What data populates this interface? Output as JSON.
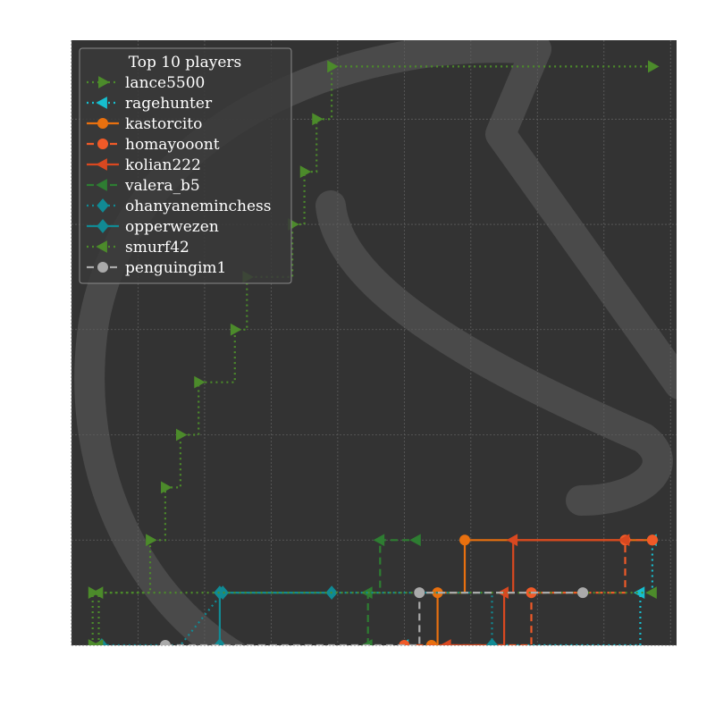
{
  "chart_data": {
    "type": "line",
    "style": "step",
    "legend": {
      "title": "Top 10 players",
      "placement": "top-left"
    },
    "grid": true,
    "background_color": "#333333",
    "watermark": "chess knight logo",
    "xlim": [
      0,
      100
    ],
    "ylim": [
      0,
      11.5
    ],
    "series": [
      {
        "name": "lance5500",
        "color": "#4c8b2b",
        "line": "dotted",
        "marker": "triangle-right",
        "points": [
          [
            3.5,
            0
          ],
          [
            3.5,
            1
          ],
          [
            6,
            1
          ],
          [
            13,
            1
          ],
          [
            13,
            2
          ],
          [
            15.5,
            2
          ],
          [
            15.5,
            3
          ],
          [
            18,
            3
          ],
          [
            18,
            4
          ],
          [
            21,
            4
          ],
          [
            21,
            5
          ],
          [
            27,
            5
          ],
          [
            27,
            6
          ],
          [
            29,
            6
          ],
          [
            29,
            7
          ],
          [
            36.5,
            7
          ],
          [
            36.5,
            8
          ],
          [
            38.5,
            8
          ],
          [
            38.5,
            9
          ],
          [
            40.5,
            9
          ],
          [
            40.5,
            10
          ],
          [
            43,
            10
          ],
          [
            43,
            11
          ],
          [
            54.5,
            11
          ],
          [
            65.5,
            11
          ],
          [
            80.5,
            11
          ],
          [
            96,
            11
          ]
        ]
      },
      {
        "name": "ragehunter",
        "color": "#17becf",
        "line": "dotted",
        "marker": "triangle-left",
        "points": [
          [
            55,
            0
          ],
          [
            69,
            0
          ],
          [
            75,
            0
          ],
          [
            94,
            0
          ],
          [
            94,
            1
          ],
          [
            96,
            1
          ],
          [
            96,
            2
          ]
        ]
      },
      {
        "name": "kastorcito",
        "color": "#e8700f",
        "line": "solid",
        "marker": "circle",
        "points": [
          [
            59.5,
            0
          ],
          [
            60.5,
            0
          ],
          [
            60.5,
            1
          ],
          [
            65,
            1
          ],
          [
            65,
            2
          ],
          [
            80.5,
            2
          ],
          [
            96,
            2
          ]
        ]
      },
      {
        "name": "homayooont",
        "color": "#f05a28",
        "line": "dashed",
        "marker": "circle",
        "points": [
          [
            55,
            0
          ],
          [
            76,
            0
          ],
          [
            76,
            1
          ],
          [
            80.5,
            1
          ],
          [
            87,
            1
          ],
          [
            91.5,
            1
          ],
          [
            91.5,
            2
          ],
          [
            96,
            2
          ]
        ]
      },
      {
        "name": "kolian222",
        "color": "#d94820",
        "line": "solid",
        "marker": "triangle-left",
        "points": [
          [
            62,
            0
          ],
          [
            71.5,
            0
          ],
          [
            71.5,
            1
          ],
          [
            73,
            1
          ],
          [
            73,
            2
          ],
          [
            74,
            2
          ],
          [
            84,
            2
          ],
          [
            91.5,
            2
          ]
        ]
      },
      {
        "name": "valera_b5",
        "color": "#2e7d32",
        "line": "dashed",
        "marker": "triangle-left",
        "points": [
          [
            49,
            0
          ],
          [
            49,
            1
          ],
          [
            51,
            1
          ],
          [
            51,
            2
          ],
          [
            57,
            2
          ]
        ]
      },
      {
        "name": "ohanyaneminchess",
        "color": "#118a94",
        "line": "dotted",
        "marker": "diamond",
        "points": [
          [
            5,
            0
          ],
          [
            18,
            0
          ],
          [
            25,
            1
          ],
          [
            40.5,
            1
          ],
          [
            69.5,
            1
          ],
          [
            69.5,
            0
          ]
        ]
      },
      {
        "name": "opperwezen",
        "color": "#118a94",
        "line": "solid",
        "marker": "diamond",
        "points": [
          [
            24.5,
            0
          ],
          [
            24.5,
            1
          ],
          [
            40.5,
            1
          ],
          [
            43,
            1
          ]
        ]
      },
      {
        "name": "smurf42",
        "color": "#4c8b2b",
        "line": "dotted",
        "marker": "triangle-left",
        "points": [
          [
            4.5,
            0
          ],
          [
            4.5,
            1
          ],
          [
            10,
            1
          ],
          [
            32,
            1
          ],
          [
            51,
            1
          ],
          [
            68,
            1
          ],
          [
            90,
            1
          ],
          [
            96,
            1
          ]
        ]
      },
      {
        "name": "penguingim1",
        "color": "#aaaaaa",
        "line": "dashed",
        "marker": "circle",
        "points": [
          [
            15.5,
            0
          ],
          [
            29,
            0
          ],
          [
            43,
            0
          ],
          [
            57.5,
            0
          ],
          [
            57.5,
            1
          ],
          [
            60,
            1
          ],
          [
            69.5,
            1
          ],
          [
            84.5,
            1
          ]
        ]
      }
    ]
  }
}
